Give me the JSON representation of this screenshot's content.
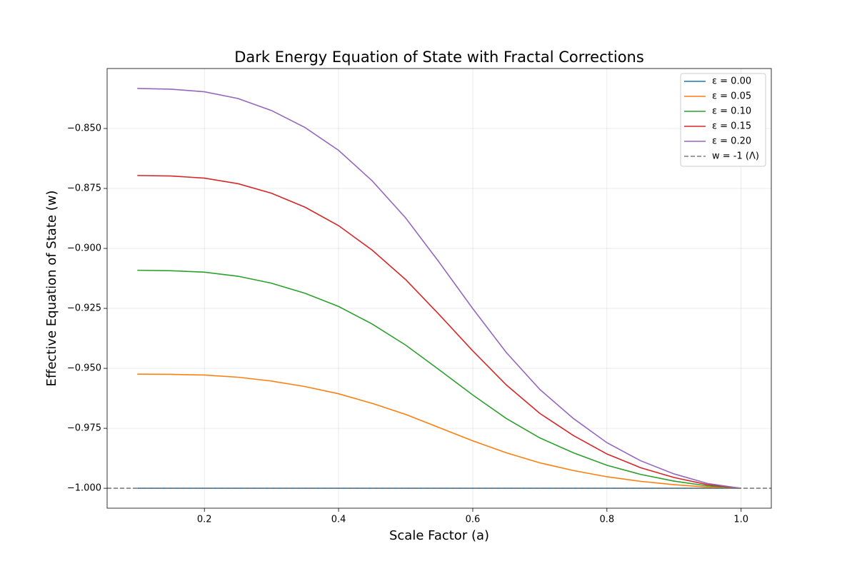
{
  "chart_data": {
    "type": "line",
    "title": "Dark Energy Equation of State with Fractal Corrections",
    "xlabel": "Scale Factor (a)",
    "ylabel": "Effective Equation of State (w)",
    "x": [
      0.1,
      0.15,
      0.2,
      0.25,
      0.3,
      0.35,
      0.4,
      0.45,
      0.5,
      0.55,
      0.6,
      0.65,
      0.7,
      0.75,
      0.8,
      0.85,
      0.9,
      0.95,
      1.0
    ],
    "series": [
      {
        "name": "ε = 0.00",
        "color": "#1f77b4",
        "values": [
          -1,
          -1,
          -1,
          -1,
          -1,
          -1,
          -1,
          -1,
          -1,
          -1,
          -1,
          -1,
          -1,
          -1,
          -1,
          -1,
          -1,
          -1,
          -1
        ]
      },
      {
        "name": "ε = 0.05",
        "color": "#ff7f0e",
        "values": [
          -0.9524,
          -0.9525,
          -0.9528,
          -0.9537,
          -0.9553,
          -0.9576,
          -0.9606,
          -0.9646,
          -0.9692,
          -0.9747,
          -0.9802,
          -0.9852,
          -0.9894,
          -0.9926,
          -0.9952,
          -0.9971,
          -0.9985,
          -0.9995,
          -1.0
        ]
      },
      {
        "name": "ε = 0.10",
        "color": "#2ca02c",
        "values": [
          -0.9091,
          -0.9093,
          -0.9099,
          -0.9116,
          -0.9145,
          -0.9187,
          -0.9242,
          -0.9315,
          -0.9403,
          -0.9506,
          -0.9611,
          -0.9709,
          -0.979,
          -0.9852,
          -0.9904,
          -0.9942,
          -0.997,
          -0.999,
          -1.0
        ]
      },
      {
        "name": "ε = 0.15",
        "color": "#d62728",
        "values": [
          -0.8696,
          -0.8698,
          -0.8707,
          -0.873,
          -0.877,
          -0.8828,
          -0.8905,
          -0.9007,
          -0.913,
          -0.9276,
          -0.9427,
          -0.9569,
          -0.9688,
          -0.978,
          -0.9857,
          -0.9914,
          -0.9955,
          -0.9985,
          -1.0
        ]
      },
      {
        "name": "ε = 0.20",
        "color": "#9467bd",
        "values": [
          -0.8333,
          -0.8336,
          -0.8347,
          -0.8375,
          -0.8425,
          -0.8496,
          -0.8591,
          -0.8718,
          -0.8873,
          -0.9058,
          -0.9251,
          -0.9434,
          -0.9588,
          -0.9709,
          -0.981,
          -0.9885,
          -0.994,
          -0.998,
          -1.0
        ]
      }
    ],
    "reference_line": {
      "name": "w = -1 (Λ)",
      "value": -1,
      "color": "#7f7f7f",
      "dashed": true
    },
    "xlim": [
      0.055,
      1.045
    ],
    "ylim": [
      -1.0083,
      -0.825
    ],
    "xticks": [
      0.2,
      0.4,
      0.6,
      0.8,
      {
        "value": 1.0,
        "label": "1.0"
      }
    ],
    "yticks": [
      {
        "value": -1.0,
        "label": "−1.000"
      },
      {
        "value": -0.975,
        "label": "−0.975"
      },
      {
        "value": -0.95,
        "label": "−0.950"
      },
      {
        "value": -0.925,
        "label": "−0.925"
      },
      {
        "value": -0.9,
        "label": "−0.900"
      },
      {
        "value": -0.875,
        "label": "−0.875"
      },
      {
        "value": -0.85,
        "label": "−0.850"
      }
    ],
    "grid": true,
    "legend": "upper right"
  }
}
